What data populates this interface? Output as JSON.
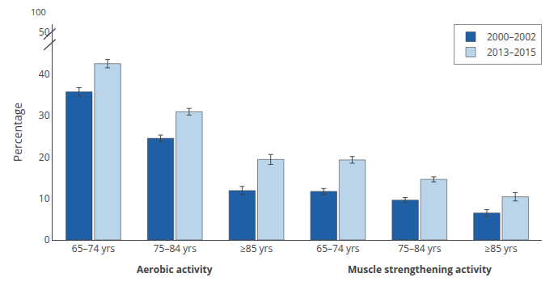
{
  "chart_data": {
    "type": "bar",
    "categories": [
      "65–74 yrs",
      "75–84 yrs",
      "≥85 yrs",
      "65–74 yrs",
      "75–84 yrs",
      "≥85 yrs"
    ],
    "series": [
      {
        "name": "2000–2002",
        "color": "#1f5fa6",
        "values": [
          35.7,
          24.5,
          11.9,
          11.7,
          9.6,
          6.5
        ],
        "errors": [
          1.0,
          0.8,
          1.0,
          0.7,
          0.6,
          0.8
        ]
      },
      {
        "name": "2013–2015",
        "color": "#bad4ea",
        "values": [
          42.5,
          30.9,
          19.4,
          19.3,
          14.6,
          10.4
        ],
        "errors": [
          1.0,
          0.8,
          1.2,
          0.8,
          0.6,
          1.0
        ]
      }
    ],
    "ylabel": "Percentage",
    "ylim": [
      0,
      52
    ],
    "yticks": [
      0,
      10,
      20,
      30,
      40,
      50
    ],
    "grid": false,
    "legend": "upper right",
    "annotations": [
      "100",
      "Aerobic activity",
      "Muscle strengthening activity"
    ]
  }
}
